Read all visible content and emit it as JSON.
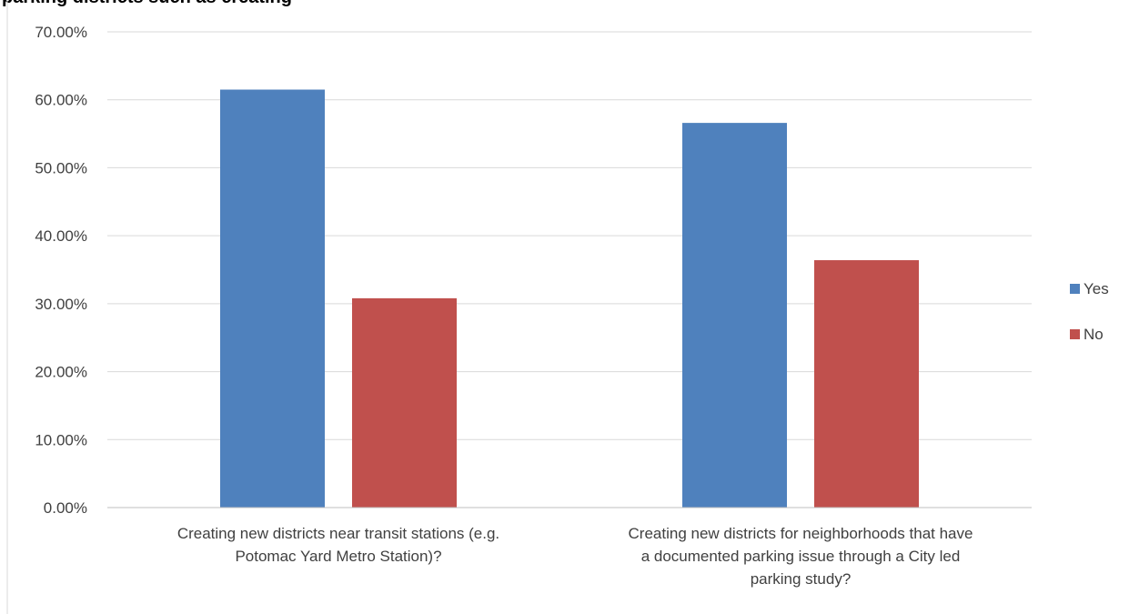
{
  "header": {
    "cut_title": "parking districts such as creating"
  },
  "chart_data": {
    "type": "bar",
    "title": "",
    "xlabel": "",
    "ylabel": "",
    "ylim": [
      0,
      70
    ],
    "grid": true,
    "legend_position": "right",
    "tick_format": "percent_2dp",
    "y_ticks": [
      "0.00%",
      "10.00%",
      "20.00%",
      "30.00%",
      "40.00%",
      "50.00%",
      "60.00%",
      "70.00%"
    ],
    "categories": [
      [
        "Creating new districts near transit stations (e.g.",
        "Potomac Yard Metro Station)?"
      ],
      [
        "Creating new districts for neighborhoods that have",
        "a documented parking issue through a City led",
        "parking study?"
      ]
    ],
    "series": [
      {
        "name": "Yes",
        "color": "#4F81BD",
        "values": [
          61.5,
          56.6
        ]
      },
      {
        "name": "No",
        "color": "#C0504D",
        "values": [
          30.8,
          36.4
        ]
      }
    ]
  }
}
